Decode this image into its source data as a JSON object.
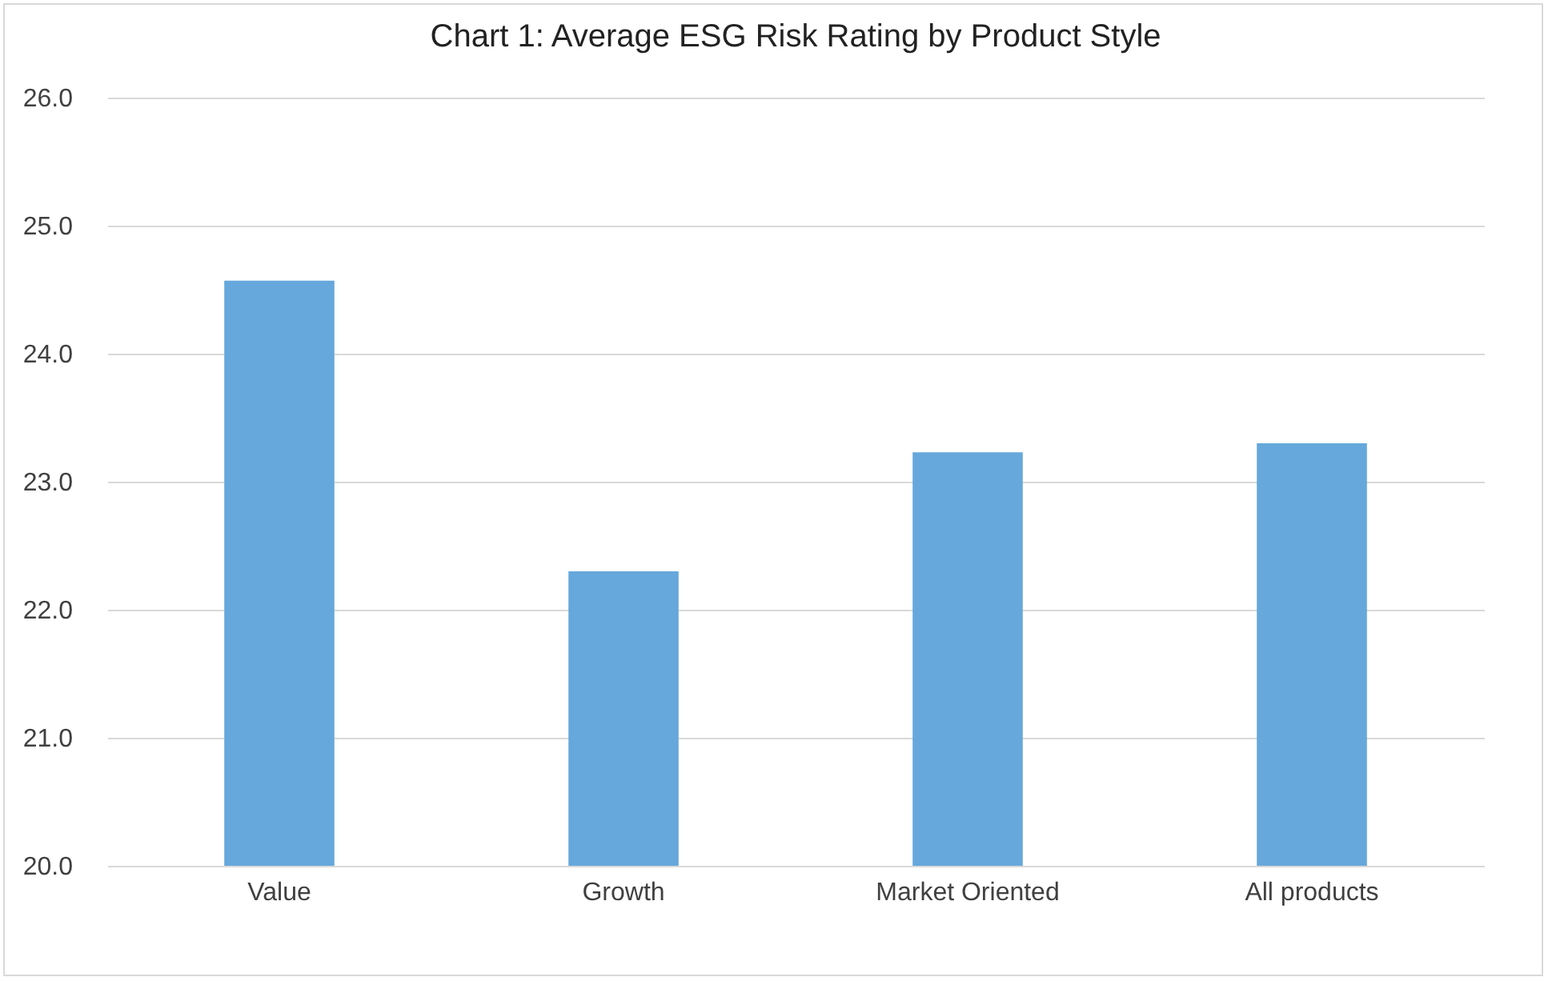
{
  "chart_data": {
    "type": "bar",
    "title": "Chart 1: Average ESG Risk Rating by Product Style",
    "categories": [
      "Value",
      "Growth",
      "Market Oriented",
      "All products"
    ],
    "values": [
      24.57,
      22.3,
      23.23,
      23.3
    ],
    "color": "#66a8dc",
    "ylim": [
      20,
      26
    ],
    "yticks": [
      {
        "value": 20,
        "label": "20.0"
      },
      {
        "value": 21,
        "label": "21.0"
      },
      {
        "value": 22,
        "label": "22.0"
      },
      {
        "value": 23,
        "label": "23.0"
      },
      {
        "value": 24,
        "label": "24.0"
      },
      {
        "value": 25,
        "label": "25.0"
      },
      {
        "value": 26,
        "label": "26.0"
      }
    ],
    "grid": "y"
  }
}
